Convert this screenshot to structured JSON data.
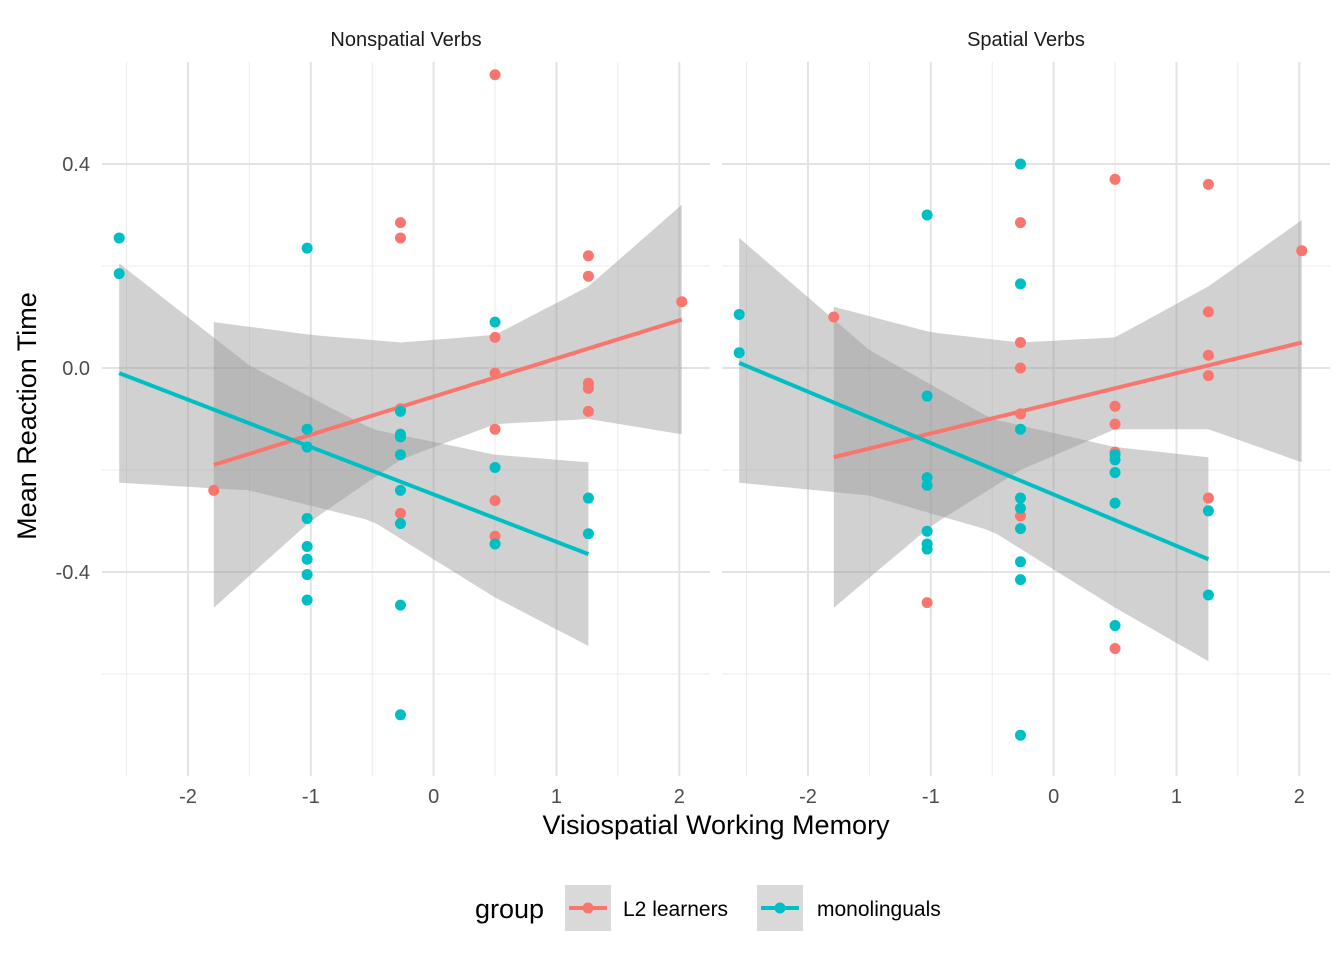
{
  "chart_data": {
    "type": "scatter",
    "xlabel": "Visiospatial Working Memory",
    "ylabel": "Mean Reaction Time",
    "xlim": [
      -2.7,
      2.25
    ],
    "ylim": [
      -0.8,
      0.6
    ],
    "x_ticks": [
      -2,
      -1,
      0,
      1,
      2
    ],
    "x_tick_labels": [
      "-2",
      "-1",
      "0",
      "1",
      "2"
    ],
    "y_ticks": [
      -0.4,
      0.0,
      0.4
    ],
    "y_tick_labels": [
      "-0.4",
      "0.0",
      "0.4"
    ],
    "grid": true,
    "legend": {
      "title": "group",
      "placement": "bottom",
      "entries": [
        {
          "label": "L2 learners",
          "color": "#F8766D"
        },
        {
          "label": "monolinguals",
          "color": "#00BFC4"
        }
      ]
    },
    "panels": [
      {
        "title": "Nonspatial Verbs",
        "series": [
          {
            "name": "L2 learners",
            "color": "#F8766D",
            "points": [
              [
                -1.79,
                -0.24
              ],
              [
                -0.27,
                0.285
              ],
              [
                -0.27,
                0.255
              ],
              [
                -0.27,
                -0.285
              ],
              [
                -0.27,
                -0.08
              ],
              [
                0.5,
                0.575
              ],
              [
                0.5,
                0.06
              ],
              [
                0.5,
                -0.01
              ],
              [
                0.5,
                -0.12
              ],
              [
                0.5,
                -0.26
              ],
              [
                0.5,
                -0.33
              ],
              [
                1.26,
                0.22
              ],
              [
                1.26,
                0.18
              ],
              [
                1.26,
                -0.03
              ],
              [
                1.26,
                -0.04
              ],
              [
                1.26,
                -0.085
              ],
              [
                2.02,
                0.13
              ]
            ],
            "fit": {
              "x": [
                -1.79,
                2.02
              ],
              "y": [
                -0.19,
                0.095
              ]
            },
            "band": {
              "x": [
                -1.79,
                -1.0,
                -0.27,
                0.5,
                1.26,
                2.02
              ],
              "lower": [
                -0.47,
                -0.3,
                -0.18,
                -0.11,
                -0.1,
                -0.13
              ],
              "upper": [
                0.09,
                0.065,
                0.05,
                0.065,
                0.16,
                0.32
              ]
            }
          },
          {
            "name": "monolinguals",
            "color": "#00BFC4",
            "points": [
              [
                -2.56,
                0.255
              ],
              [
                -2.56,
                0.185
              ],
              [
                -1.03,
                0.235
              ],
              [
                -1.03,
                -0.12
              ],
              [
                -1.03,
                -0.155
              ],
              [
                -1.03,
                -0.295
              ],
              [
                -1.03,
                -0.35
              ],
              [
                -1.03,
                -0.375
              ],
              [
                -1.03,
                -0.405
              ],
              [
                -1.03,
                -0.455
              ],
              [
                -0.27,
                -0.085
              ],
              [
                -0.27,
                -0.13
              ],
              [
                -0.27,
                -0.135
              ],
              [
                -0.27,
                -0.17
              ],
              [
                -0.27,
                -0.24
              ],
              [
                -0.27,
                -0.305
              ],
              [
                -0.27,
                -0.465
              ],
              [
                -0.27,
                -0.68
              ],
              [
                0.5,
                0.09
              ],
              [
                0.5,
                -0.195
              ],
              [
                0.5,
                -0.345
              ],
              [
                1.26,
                -0.255
              ],
              [
                1.26,
                -0.325
              ]
            ],
            "fit": {
              "x": [
                -2.56,
                1.26
              ],
              "y": [
                -0.01,
                -0.365
              ]
            },
            "band": {
              "x": [
                -2.56,
                -1.5,
                -0.5,
                0.5,
                1.26
              ],
              "lower": [
                -0.225,
                -0.24,
                -0.3,
                -0.45,
                -0.545
              ],
              "upper": [
                0.205,
                0.005,
                -0.12,
                -0.17,
                -0.185
              ]
            }
          }
        ]
      },
      {
        "title": "Spatial Verbs",
        "series": [
          {
            "name": "L2 learners",
            "color": "#F8766D",
            "points": [
              [
                -1.79,
                0.1
              ],
              [
                -1.03,
                -0.46
              ],
              [
                -0.27,
                0.285
              ],
              [
                -0.27,
                0.05
              ],
              [
                -0.27,
                0.0
              ],
              [
                -0.27,
                -0.09
              ],
              [
                -0.27,
                -0.29
              ],
              [
                0.5,
                0.37
              ],
              [
                0.5,
                -0.075
              ],
              [
                0.5,
                -0.11
              ],
              [
                0.5,
                -0.165
              ],
              [
                0.5,
                -0.55
              ],
              [
                1.26,
                0.36
              ],
              [
                1.26,
                0.11
              ],
              [
                1.26,
                0.025
              ],
              [
                1.26,
                -0.015
              ],
              [
                1.26,
                -0.255
              ],
              [
                2.02,
                0.23
              ]
            ],
            "fit": {
              "x": [
                -1.79,
                2.02
              ],
              "y": [
                -0.175,
                0.05
              ]
            },
            "band": {
              "x": [
                -1.79,
                -1.0,
                -0.27,
                0.5,
                1.26,
                2.02
              ],
              "lower": [
                -0.47,
                -0.31,
                -0.2,
                -0.12,
                -0.12,
                -0.185
              ],
              "upper": [
                0.12,
                0.07,
                0.05,
                0.06,
                0.16,
                0.29
              ]
            }
          },
          {
            "name": "monolinguals",
            "color": "#00BFC4",
            "points": [
              [
                -2.56,
                0.105
              ],
              [
                -2.56,
                0.03
              ],
              [
                -1.03,
                0.3
              ],
              [
                -1.03,
                -0.055
              ],
              [
                -1.03,
                -0.215
              ],
              [
                -1.03,
                -0.23
              ],
              [
                -1.03,
                -0.32
              ],
              [
                -1.03,
                -0.345
              ],
              [
                -1.03,
                -0.355
              ],
              [
                -0.27,
                0.4
              ],
              [
                -0.27,
                0.165
              ],
              [
                -0.27,
                -0.12
              ],
              [
                -0.27,
                -0.255
              ],
              [
                -0.27,
                -0.275
              ],
              [
                -0.27,
                -0.315
              ],
              [
                -0.27,
                -0.38
              ],
              [
                -0.27,
                -0.415
              ],
              [
                -0.27,
                -0.72
              ],
              [
                0.5,
                -0.17
              ],
              [
                0.5,
                -0.18
              ],
              [
                0.5,
                -0.205
              ],
              [
                0.5,
                -0.265
              ],
              [
                0.5,
                -0.505
              ],
              [
                1.26,
                -0.28
              ],
              [
                1.26,
                -0.445
              ]
            ],
            "fit": {
              "x": [
                -2.56,
                1.26
              ],
              "y": [
                0.01,
                -0.375
              ]
            },
            "band": {
              "x": [
                -2.56,
                -1.5,
                -0.5,
                0.5,
                1.26
              ],
              "lower": [
                -0.225,
                -0.25,
                -0.32,
                -0.47,
                -0.575
              ],
              "upper": [
                0.255,
                0.035,
                -0.1,
                -0.155,
                -0.175
              ]
            }
          }
        ]
      }
    ]
  }
}
